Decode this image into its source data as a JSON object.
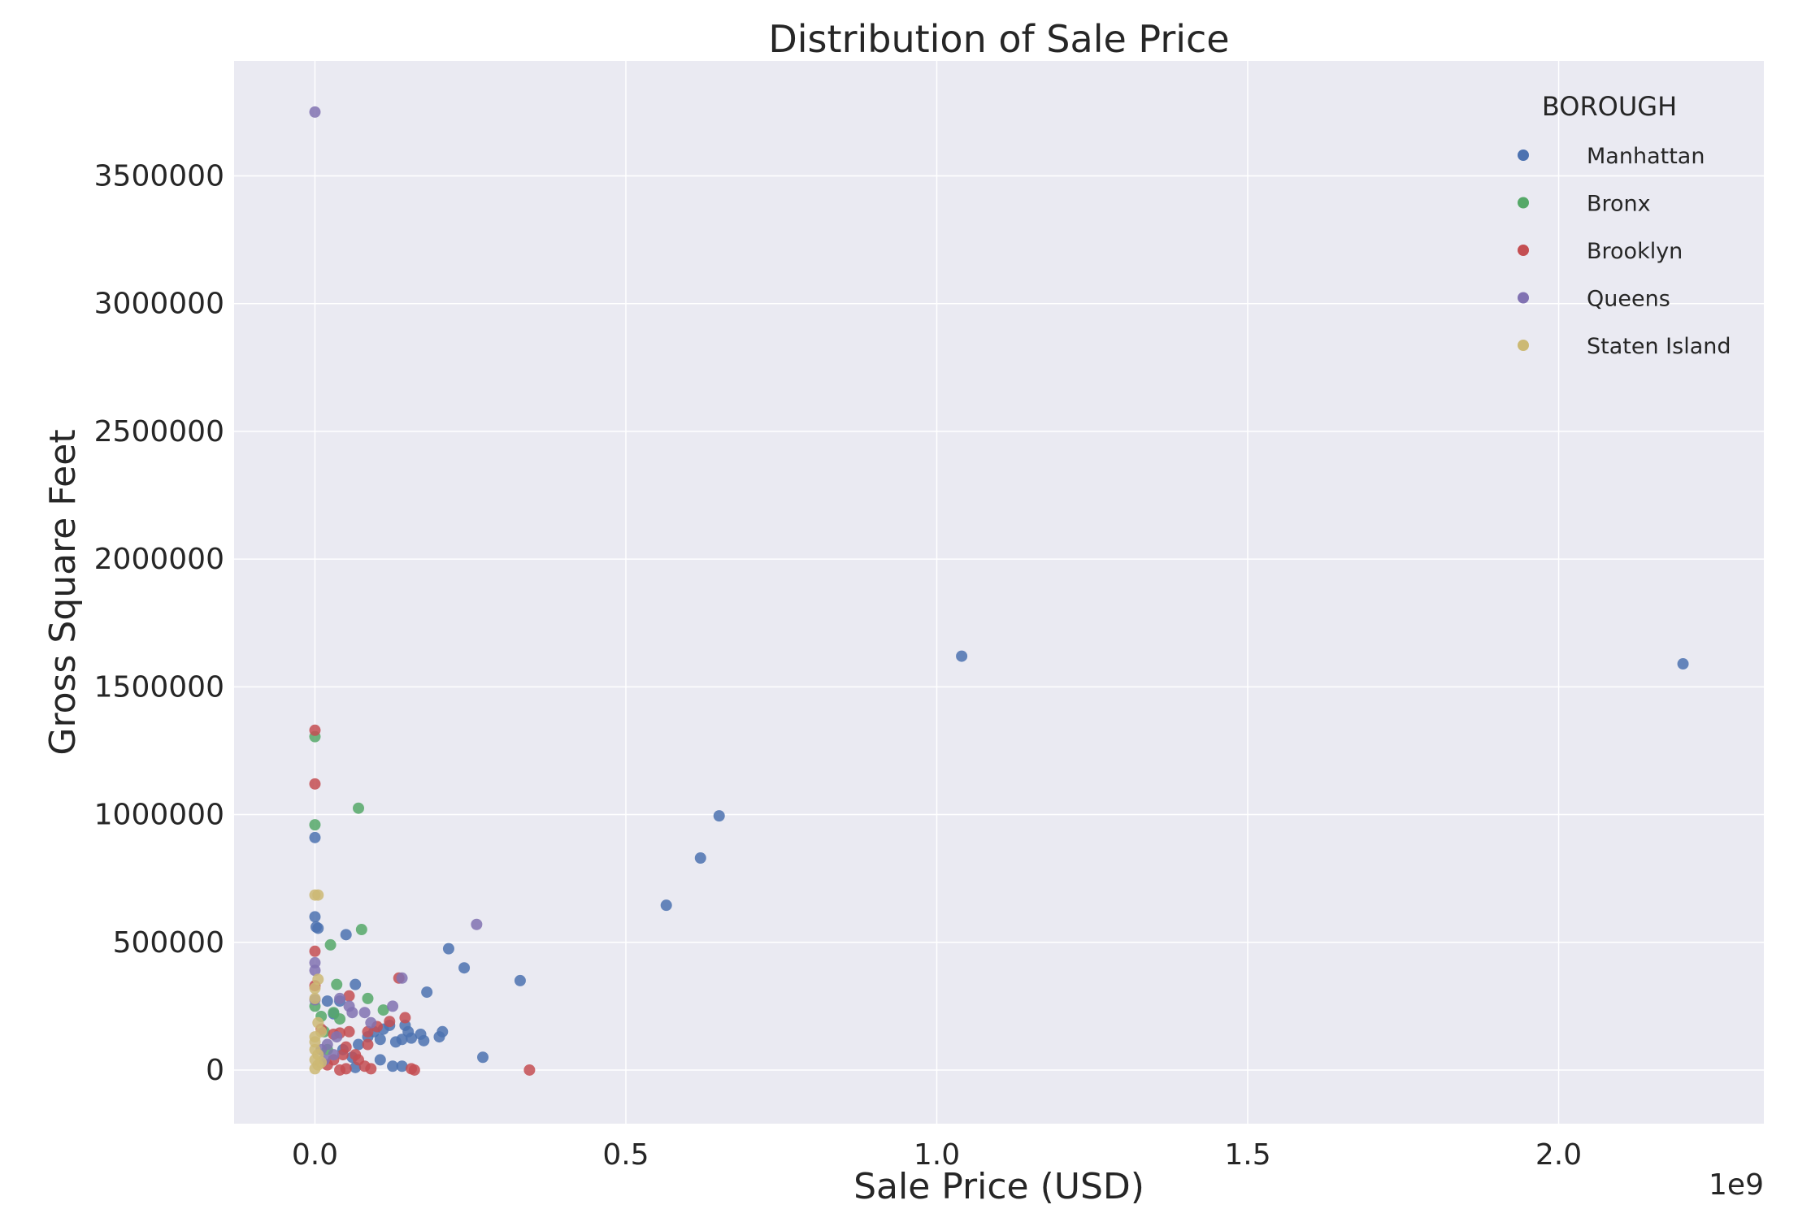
{
  "chart_data": {
    "type": "scatter",
    "title": "Distribution of Sale Price",
    "xlabel": "Sale Price (USD)",
    "ylabel": "Gross Square Feet",
    "x_offset_label": "1e9",
    "xlim": [
      -0.13,
      2.33
    ],
    "ylim": [
      -210000,
      3950000
    ],
    "x_ticks": [
      0.0,
      0.5,
      1.0,
      1.5,
      2.0
    ],
    "x_tick_labels": [
      "0.0",
      "0.5",
      "1.0",
      "1.5",
      "2.0"
    ],
    "y_ticks": [
      0,
      500000,
      1000000,
      1500000,
      2000000,
      2500000,
      3000000,
      3500000
    ],
    "y_tick_labels": [
      "0",
      "500000",
      "1000000",
      "1500000",
      "2000000",
      "2500000",
      "3000000",
      "3500000"
    ],
    "grid": true,
    "legend": {
      "title": "BOROUGH",
      "position": "top-right"
    },
    "series": [
      {
        "name": "Manhattan",
        "color": "#4c72b0",
        "points": [
          [
            1.04,
            1620000
          ],
          [
            2.2,
            1590000
          ],
          [
            0.65,
            995000
          ],
          [
            0.62,
            830000
          ],
          [
            0.565,
            645000
          ],
          [
            0.33,
            350000
          ],
          [
            0.24,
            400000
          ],
          [
            0.215,
            475000
          ],
          [
            0.18,
            305000
          ],
          [
            0.27,
            50000
          ],
          [
            0.205,
            150000
          ],
          [
            0.2,
            130000
          ],
          [
            0.17,
            140000
          ],
          [
            0.175,
            115000
          ],
          [
            0.15,
            150000
          ],
          [
            0.155,
            125000
          ],
          [
            0.145,
            175000
          ],
          [
            0.14,
            120000
          ],
          [
            0.13,
            110000
          ],
          [
            0.12,
            175000
          ],
          [
            0.11,
            160000
          ],
          [
            0.105,
            120000
          ],
          [
            0.095,
            150000
          ],
          [
            0.105,
            40000
          ],
          [
            0.125,
            15000
          ],
          [
            0.14,
            15000
          ],
          [
            0.065,
            335000
          ],
          [
            0.05,
            530000
          ],
          [
            0.0,
            910000
          ],
          [
            0.0,
            600000
          ],
          [
            0.002,
            560000
          ],
          [
            0.005,
            555000
          ],
          [
            0.02,
            270000
          ],
          [
            0.04,
            270000
          ],
          [
            0.065,
            10000
          ],
          [
            0.045,
            80000
          ],
          [
            0.07,
            100000
          ],
          [
            0.085,
            130000
          ],
          [
            0.03,
            220000
          ],
          [
            0.06,
            50000
          ]
        ]
      },
      {
        "name": "Bronx",
        "color": "#55a868",
        "points": [
          [
            0.0,
            1305000
          ],
          [
            0.0,
            960000
          ],
          [
            0.07,
            1025000
          ],
          [
            0.075,
            550000
          ],
          [
            0.025,
            490000
          ],
          [
            0.085,
            280000
          ],
          [
            0.035,
            335000
          ],
          [
            0.11,
            235000
          ],
          [
            0.04,
            200000
          ],
          [
            0.01,
            210000
          ],
          [
            0.03,
            225000
          ],
          [
            0.0,
            250000
          ],
          [
            0.015,
            150000
          ],
          [
            0.02,
            80000
          ]
        ]
      },
      {
        "name": "Brooklyn",
        "color": "#c44e52",
        "points": [
          [
            0.0,
            1330000
          ],
          [
            0.0,
            1120000
          ],
          [
            0.0,
            465000
          ],
          [
            0.345,
            0
          ],
          [
            0.155,
            5000
          ],
          [
            0.16,
            0
          ],
          [
            0.135,
            360000
          ],
          [
            0.145,
            205000
          ],
          [
            0.12,
            190000
          ],
          [
            0.1,
            170000
          ],
          [
            0.085,
            150000
          ],
          [
            0.055,
            290000
          ],
          [
            0.055,
            150000
          ],
          [
            0.04,
            145000
          ],
          [
            0.03,
            140000
          ],
          [
            0.085,
            100000
          ],
          [
            0.09,
            5000
          ],
          [
            0.08,
            15000
          ],
          [
            0.05,
            90000
          ],
          [
            0.045,
            60000
          ],
          [
            0.03,
            40000
          ],
          [
            0.02,
            20000
          ],
          [
            0.04,
            0
          ],
          [
            0.05,
            5000
          ],
          [
            0.065,
            60000
          ],
          [
            0.07,
            40000
          ],
          [
            0.01,
            160000
          ],
          [
            0.0,
            330000
          ]
        ]
      },
      {
        "name": "Queens",
        "color": "#8172b2",
        "points": [
          [
            0.0,
            3750000
          ],
          [
            0.26,
            570000
          ],
          [
            0.14,
            360000
          ],
          [
            0.125,
            250000
          ],
          [
            0.0,
            420000
          ],
          [
            0.0,
            390000
          ],
          [
            0.0,
            275000
          ],
          [
            0.055,
            250000
          ],
          [
            0.06,
            225000
          ],
          [
            0.08,
            225000
          ],
          [
            0.09,
            185000
          ],
          [
            0.04,
            280000
          ],
          [
            0.035,
            130000
          ],
          [
            0.02,
            100000
          ],
          [
            0.01,
            80000
          ],
          [
            0.03,
            60000
          ],
          [
            0.015,
            40000
          ]
        ]
      },
      {
        "name": "Staten Island",
        "color": "#ccb974",
        "points": [
          [
            0.0,
            685000
          ],
          [
            0.005,
            685000
          ],
          [
            0.005,
            355000
          ],
          [
            0.0,
            320000
          ],
          [
            0.0,
            280000
          ],
          [
            0.005,
            185000
          ],
          [
            0.01,
            150000
          ],
          [
            0.0,
            130000
          ],
          [
            0.0,
            110000
          ],
          [
            0.0,
            80000
          ],
          [
            0.005,
            60000
          ],
          [
            0.0,
            40000
          ],
          [
            0.005,
            20000
          ],
          [
            0.0,
            5000
          ],
          [
            0.01,
            30000
          ]
        ]
      }
    ]
  }
}
